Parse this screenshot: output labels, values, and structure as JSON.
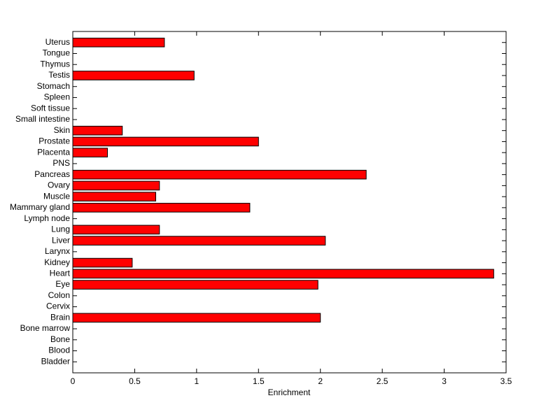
{
  "chart_data": {
    "type": "barh",
    "xlabel": "Enrichment",
    "categories": [
      "Bladder",
      "Blood",
      "Bone",
      "Bone marrow",
      "Brain",
      "Cervix",
      "Colon",
      "Eye",
      "Heart",
      "Kidney",
      "Larynx",
      "Liver",
      "Lung",
      "Lymph node",
      "Mammary gland",
      "Muscle",
      "Ovary",
      "Pancreas",
      "PNS",
      "Placenta",
      "Prostate",
      "Skin",
      "Small intestine",
      "Soft tissue",
      "Spleen",
      "Stomach",
      "Testis",
      "Thymus",
      "Tongue",
      "Uterus"
    ],
    "values": [
      0,
      0,
      0,
      0,
      2.0,
      0,
      0,
      1.98,
      3.4,
      0.48,
      0,
      2.04,
      0.7,
      0,
      1.43,
      0.67,
      0.7,
      2.37,
      0,
      0.28,
      1.5,
      0.4,
      0,
      0,
      0,
      0,
      0.98,
      0,
      0,
      0.74
    ],
    "color": "#ff0000",
    "xlim": [
      0,
      3.5
    ],
    "xticks": [
      0,
      0.5,
      1,
      1.5,
      2,
      2.5,
      3,
      3.5
    ]
  }
}
